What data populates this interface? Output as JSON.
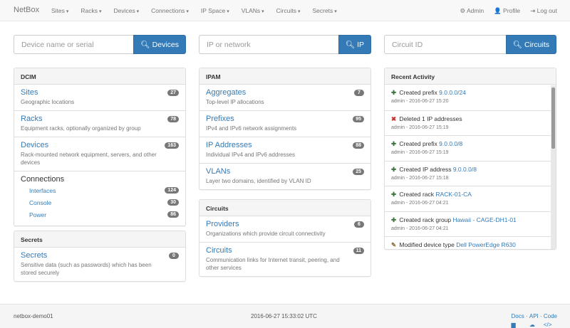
{
  "navbar": {
    "brand": "NetBox",
    "menus": [
      "Sites",
      "Racks",
      "Devices",
      "Connections",
      "IP Space",
      "VLANs",
      "Circuits",
      "Secrets"
    ],
    "admin": "Admin",
    "profile": "Profile",
    "logout": "Log out"
  },
  "search": [
    {
      "placeholder": "Device name or serial",
      "button": "Devices"
    },
    {
      "placeholder": "IP or network",
      "button": "IP"
    },
    {
      "placeholder": "Circuit ID",
      "button": "Circuits"
    }
  ],
  "dcim": {
    "title": "DCIM",
    "items": [
      {
        "title": "Sites",
        "desc": "Geographic locations",
        "count": "27"
      },
      {
        "title": "Racks",
        "desc": "Equipment racks, optionally organized by group",
        "count": "78"
      },
      {
        "title": "Devices",
        "desc": "Rack-mounted network equipment, servers, and other devices",
        "count": "163"
      }
    ],
    "connections": {
      "title": "Connections",
      "items": [
        {
          "label": "Interfaces",
          "count": "124"
        },
        {
          "label": "Console",
          "count": "30"
        },
        {
          "label": "Power",
          "count": "86"
        }
      ]
    }
  },
  "secrets": {
    "title": "Secrets",
    "items": [
      {
        "title": "Secrets",
        "desc": "Sensitive data (such as passwords) which has been stored securely",
        "count": "0"
      }
    ]
  },
  "ipam": {
    "title": "IPAM",
    "items": [
      {
        "title": "Aggregates",
        "desc": "Top-level IP allocations",
        "count": "7"
      },
      {
        "title": "Prefixes",
        "desc": "IPv4 and IPv6 network assignments",
        "count": "95"
      },
      {
        "title": "IP Addresses",
        "desc": "Individual IPv4 and IPv6 addresses",
        "count": "88"
      },
      {
        "title": "VLANs",
        "desc": "Layer two domains, identified by VLAN ID",
        "count": "25"
      }
    ]
  },
  "circuits": {
    "title": "Circuits",
    "items": [
      {
        "title": "Providers",
        "desc": "Organizations which provide circuit connectivity",
        "count": "6"
      },
      {
        "title": "Circuits",
        "desc": "Communication links for Internet transit, peering, and other services",
        "count": "11"
      }
    ]
  },
  "activity": {
    "title": "Recent Activity",
    "colors": {
      "created": "#3c763d",
      "deleted": "#c9302c",
      "modified": "#8a6d3b"
    },
    "items": [
      {
        "icon": "plus",
        "text": "Created prefix",
        "link": "9.0.0.0/24",
        "meta": "admin - 2016-06-27 15:20"
      },
      {
        "icon": "remove",
        "text": "Deleted 1 IP addresses",
        "link": "",
        "meta": "admin - 2016-06-27 15:19"
      },
      {
        "icon": "plus",
        "text": "Created prefix",
        "link": "9.0.0.0/8",
        "meta": "admin - 2016-06-27 15:19"
      },
      {
        "icon": "plus",
        "text": "Created IP address",
        "link": "9.0.0.0/8",
        "meta": "admin - 2016-06-27 15:18"
      },
      {
        "icon": "plus",
        "text": "Created rack",
        "link": "RACK-01-CA",
        "meta": "admin - 2016-06-27 04:21"
      },
      {
        "icon": "plus",
        "text": "Created rack group",
        "link": "Hawaii - CAGE-DH1-01",
        "meta": "admin - 2016-06-27 04:21"
      },
      {
        "icon": "pencil",
        "text": "Modified device type",
        "link": "Dell PowerEdge R630",
        "meta": ""
      }
    ]
  },
  "footer": {
    "host": "netbox-demo01",
    "time": "2016-06-27 15:33:02 UTC",
    "docs": "Docs",
    "api": "API",
    "code": "Code"
  }
}
